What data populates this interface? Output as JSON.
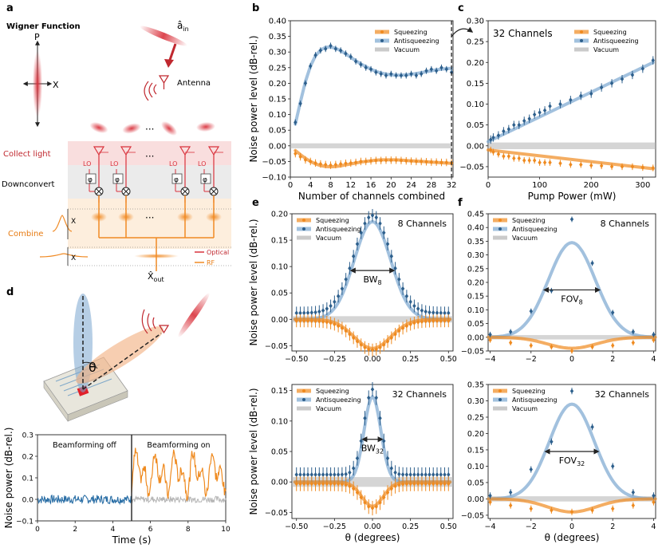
{
  "panels": {
    "a": {
      "letter": "a",
      "wigner_title": "Wigner Function",
      "p_axis": "P",
      "x_axis": "X",
      "a_in": "â",
      "a_in_sub": "in",
      "antenna": "Antenna",
      "dots": "···",
      "collect_light": "Collect light",
      "downconvert": "Downconvert",
      "combine": "Combine",
      "lo": "LO",
      "phi": "φ",
      "x_label": "X",
      "x_out": "X̂",
      "x_out_sub": "out",
      "legend_optical": "Optical",
      "legend_rf": "RF"
    },
    "d": {
      "letter": "d",
      "theta": "θ",
      "beamforming_off": "Beamforming off",
      "beamforming_on": "Beamforming on"
    }
  },
  "colors": {
    "squeezing": "#ef8a1f",
    "antisqueezing": "#7aa6d0",
    "antisq_marker": "#2d5f8c",
    "vacuum": "#b3b3b3",
    "optical": "#d9323c",
    "rf": "#f08a24",
    "trace_off": "#2b6fa6"
  },
  "chart_data": [
    {
      "panel": "b",
      "type": "line",
      "xlabel": "Number of channels combined",
      "ylabel": "Noise power level (dB-rel.)",
      "xlim": [
        0,
        32.3
      ],
      "ylim": [
        -0.1,
        0.4
      ],
      "xticks": [
        0,
        4,
        8,
        12,
        16,
        20,
        24,
        28,
        32
      ],
      "yticks": [
        -0.1,
        -0.05,
        0.0,
        0.05,
        0.1,
        0.15,
        0.2,
        0.25,
        0.3,
        0.35,
        0.4
      ],
      "legend_position": "top-right",
      "annotation": "32 Channels",
      "series": [
        {
          "name": "Squeezing",
          "x": [
            1,
            2,
            3,
            4,
            5,
            6,
            7,
            8,
            9,
            10,
            11,
            12,
            13,
            14,
            15,
            16,
            17,
            18,
            19,
            20,
            21,
            22,
            23,
            24,
            25,
            26,
            27,
            28,
            29,
            30,
            31,
            32
          ],
          "y": [
            -0.025,
            -0.035,
            -0.045,
            -0.05,
            -0.055,
            -0.058,
            -0.06,
            -0.062,
            -0.06,
            -0.058,
            -0.056,
            -0.055,
            -0.053,
            -0.05,
            -0.05,
            -0.048,
            -0.047,
            -0.047,
            -0.046,
            -0.046,
            -0.046,
            -0.047,
            -0.048,
            -0.049,
            -0.05,
            -0.05,
            -0.051,
            -0.052,
            -0.052,
            -0.053,
            -0.053,
            -0.055
          ],
          "err": [
            0.012,
            0.012,
            0.012,
            0.012,
            0.012,
            0.012,
            0.012,
            0.012,
            0.012,
            0.012,
            0.012,
            0.012,
            0.012,
            0.012,
            0.012,
            0.012,
            0.012,
            0.012,
            0.012,
            0.012,
            0.012,
            0.012,
            0.012,
            0.012,
            0.012,
            0.012,
            0.012,
            0.012,
            0.012,
            0.012,
            0.012,
            0.012
          ],
          "fit": [
            -0.015,
            -0.028,
            -0.04,
            -0.05,
            -0.058,
            -0.063,
            -0.066,
            -0.067,
            -0.066,
            -0.064,
            -0.061,
            -0.058,
            -0.055,
            -0.052,
            -0.05,
            -0.048,
            -0.046,
            -0.045,
            -0.045,
            -0.045,
            -0.045,
            -0.046,
            -0.047,
            -0.048,
            -0.049,
            -0.05,
            -0.051,
            -0.052,
            -0.053,
            -0.054,
            -0.055,
            -0.056
          ]
        },
        {
          "name": "Antisqueezing",
          "x": [
            1,
            2,
            3,
            4,
            5,
            6,
            7,
            8,
            9,
            10,
            11,
            12,
            13,
            14,
            15,
            16,
            17,
            18,
            19,
            20,
            21,
            22,
            23,
            24,
            25,
            26,
            27,
            28,
            29,
            30,
            31,
            32
          ],
          "y": [
            0.075,
            0.135,
            0.2,
            0.255,
            0.29,
            0.305,
            0.31,
            0.32,
            0.31,
            0.305,
            0.295,
            0.285,
            0.27,
            0.26,
            0.25,
            0.245,
            0.235,
            0.23,
            0.225,
            0.23,
            0.225,
            0.225,
            0.225,
            0.23,
            0.225,
            0.23,
            0.24,
            0.245,
            0.24,
            0.25,
            0.245,
            0.235
          ],
          "err": [
            0.01,
            0.01,
            0.01,
            0.01,
            0.01,
            0.01,
            0.01,
            0.01,
            0.01,
            0.01,
            0.01,
            0.01,
            0.01,
            0.01,
            0.01,
            0.01,
            0.01,
            0.01,
            0.01,
            0.01,
            0.01,
            0.01,
            0.01,
            0.01,
            0.01,
            0.01,
            0.01,
            0.01,
            0.01,
            0.01,
            0.01,
            0.01
          ],
          "fit": [
            0.07,
            0.14,
            0.205,
            0.255,
            0.288,
            0.306,
            0.315,
            0.316,
            0.312,
            0.304,
            0.294,
            0.283,
            0.272,
            0.262,
            0.253,
            0.245,
            0.238,
            0.233,
            0.229,
            0.227,
            0.226,
            0.226,
            0.227,
            0.229,
            0.231,
            0.234,
            0.237,
            0.24,
            0.243,
            0.245,
            0.247,
            0.248
          ]
        },
        {
          "name": "Vacuum",
          "band": [
            -0.008,
            0.008
          ]
        }
      ]
    },
    {
      "panel": "c",
      "type": "line",
      "xlabel": "Pump Power (mW)",
      "ylabel": "",
      "xlim": [
        0,
        325
      ],
      "ylim": [
        -0.075,
        0.3
      ],
      "xticks": [
        0,
        100,
        200,
        300
      ],
      "yticks": [
        -0.05,
        0.0,
        0.05,
        0.1,
        0.15,
        0.2,
        0.25,
        0.3
      ],
      "legend_position": "top-right",
      "series": [
        {
          "name": "Squeezing",
          "x": [
            5,
            10,
            20,
            30,
            40,
            50,
            60,
            70,
            80,
            90,
            100,
            110,
            120,
            140,
            160,
            180,
            200,
            220,
            240,
            260,
            280,
            300,
            320
          ],
          "y": [
            -0.01,
            -0.015,
            -0.02,
            -0.025,
            -0.025,
            -0.03,
            -0.03,
            -0.035,
            -0.035,
            -0.035,
            -0.04,
            -0.04,
            -0.04,
            -0.042,
            -0.045,
            -0.045,
            -0.047,
            -0.048,
            -0.05,
            -0.05,
            -0.05,
            -0.052,
            -0.053
          ],
          "err": [
            0.008,
            0.008,
            0.008,
            0.008,
            0.008,
            0.008,
            0.008,
            0.008,
            0.008,
            0.008,
            0.008,
            0.008,
            0.008,
            0.008,
            0.008,
            0.008,
            0.008,
            0.008,
            0.008,
            0.008,
            0.008,
            0.008,
            0.008
          ],
          "fit_x": [
            0,
            320
          ],
          "fit": [
            -0.01,
            -0.055
          ]
        },
        {
          "name": "Antisqueezing",
          "x": [
            5,
            10,
            20,
            30,
            40,
            50,
            60,
            70,
            80,
            90,
            100,
            110,
            120,
            140,
            160,
            180,
            200,
            220,
            240,
            260,
            280,
            300,
            320
          ],
          "y": [
            0.015,
            0.02,
            0.025,
            0.035,
            0.04,
            0.05,
            0.05,
            0.06,
            0.065,
            0.075,
            0.08,
            0.085,
            0.095,
            0.1,
            0.11,
            0.12,
            0.125,
            0.14,
            0.15,
            0.16,
            0.17,
            0.185,
            0.205
          ],
          "err": [
            0.01,
            0.01,
            0.01,
            0.01,
            0.01,
            0.01,
            0.01,
            0.01,
            0.01,
            0.01,
            0.01,
            0.01,
            0.01,
            0.01,
            0.01,
            0.01,
            0.01,
            0.01,
            0.01,
            0.01,
            0.01,
            0.01,
            0.01
          ],
          "fit_x": [
            0,
            320
          ],
          "fit": [
            0.01,
            0.2
          ]
        },
        {
          "name": "Vacuum",
          "band": [
            -0.008,
            0.008
          ]
        }
      ]
    },
    {
      "panel": "e-top",
      "type": "line",
      "xlabel": "",
      "ylabel": "Noise power level (dB-rel.)",
      "xlim": [
        -0.53,
        0.53
      ],
      "ylim": [
        -0.06,
        0.2
      ],
      "xticks": [
        -0.5,
        -0.25,
        0.0,
        0.25,
        0.5
      ],
      "xtick_labels": [
        "−0.50",
        "−0.25",
        "0.00",
        "0.25",
        "0.50"
      ],
      "yticks": [
        -0.05,
        0.0,
        0.05,
        0.1,
        0.15,
        0.2
      ],
      "annotation": "8 Channels",
      "width_label": "BW",
      "width_sub": "8",
      "legend_position": "top-left",
      "series": [
        {
          "name": "Squeezing",
          "peak": -0.055,
          "sigma": 0.12,
          "center": 0,
          "err": 0.012
        },
        {
          "name": "Antisqueezing",
          "peak": 0.185,
          "sigma": 0.12,
          "center": 0,
          "err": 0.012
        },
        {
          "name": "Vacuum",
          "band": [
            -0.006,
            0.006
          ]
        }
      ]
    },
    {
      "panel": "e-bottom",
      "type": "line",
      "xlabel": "θ (degrees)",
      "ylabel": "Noise power level (dB-rel.)",
      "xlim": [
        -0.53,
        0.53
      ],
      "ylim": [
        -0.06,
        0.16
      ],
      "xticks": [
        -0.5,
        -0.25,
        0.0,
        0.25,
        0.5
      ],
      "xtick_labels": [
        "−0.50",
        "−0.25",
        "0.00",
        "0.25",
        "0.50"
      ],
      "yticks": [
        -0.05,
        0.0,
        0.05,
        0.1,
        0.15
      ],
      "annotation": "32 Channels",
      "width_label": "BW",
      "width_sub": "32",
      "legend_position": "top-left",
      "series": [
        {
          "name": "Squeezing",
          "peak": -0.04,
          "sigma": 0.07,
          "center": 0,
          "err": 0.012
        },
        {
          "name": "Antisqueezing",
          "peak": 0.14,
          "sigma": 0.055,
          "center": 0,
          "err": 0.012
        },
        {
          "name": "Vacuum",
          "band": [
            -0.008,
            0.008
          ]
        }
      ]
    },
    {
      "panel": "f-top",
      "type": "line",
      "xlabel": "",
      "ylabel": "",
      "xlim": [
        -4.1,
        4.1
      ],
      "ylim": [
        -0.05,
        0.45
      ],
      "xticks": [
        -4,
        -2,
        0,
        2,
        4
      ],
      "xtick_labels": [
        "−4",
        "−2",
        "0",
        "2",
        "4"
      ],
      "yticks": [
        -0.05,
        0.0,
        0.05,
        0.1,
        0.15,
        0.2,
        0.25,
        0.3,
        0.35,
        0.4,
        0.45
      ],
      "annotation": "8 Channels",
      "width_label": "FOV",
      "width_sub": "8",
      "legend_position": "top-left",
      "series": [
        {
          "name": "Squeezing",
          "x": [
            -4,
            -3,
            -2,
            -1,
            0,
            1,
            2,
            3,
            4
          ],
          "y": [
            -0.01,
            -0.02,
            -0.03,
            -0.035,
            -0.05,
            -0.035,
            -0.03,
            -0.02,
            -0.01
          ],
          "err": [
            0.01,
            0.01,
            0.01,
            0.01,
            0.01,
            0.01,
            0.01,
            0.01,
            0.01
          ],
          "peak": -0.04,
          "sigma": 1.2
        },
        {
          "name": "Antisqueezing",
          "x": [
            -4,
            -3,
            -2,
            -1,
            0,
            1,
            2,
            3,
            4
          ],
          "y": [
            0.01,
            0.02,
            0.095,
            0.17,
            0.43,
            0.27,
            0.09,
            0.02,
            0.01
          ],
          "err": [
            0.01,
            0.01,
            0.01,
            0.01,
            0.01,
            0.01,
            0.01,
            0.01,
            0.01
          ],
          "peak": 0.345,
          "sigma": 1.15
        },
        {
          "name": "Vacuum",
          "band": [
            -0.008,
            0.008
          ]
        }
      ]
    },
    {
      "panel": "f-bottom",
      "type": "line",
      "xlabel": "θ (degrees)",
      "ylabel": "",
      "xlim": [
        -4.1,
        4.1
      ],
      "ylim": [
        -0.06,
        0.35
      ],
      "xticks": [
        -4,
        -2,
        0,
        2,
        4
      ],
      "xtick_labels": [
        "−4",
        "−2",
        "0",
        "2",
        "4"
      ],
      "yticks": [
        -0.05,
        0.0,
        0.05,
        0.1,
        0.15,
        0.2,
        0.25,
        0.3,
        0.35
      ],
      "annotation": "32 Channels",
      "width_label": "FOV",
      "width_sub": "32",
      "legend_position": "top-left",
      "series": [
        {
          "name": "Squeezing",
          "x": [
            -4,
            -3,
            -2,
            -1,
            0,
            1,
            2,
            3,
            4
          ],
          "y": [
            -0.01,
            -0.02,
            -0.03,
            -0.035,
            -0.04,
            -0.035,
            -0.03,
            -0.02,
            -0.01
          ],
          "err": [
            0.01,
            0.01,
            0.01,
            0.01,
            0.01,
            0.01,
            0.01,
            0.01,
            0.01
          ],
          "peak": -0.04,
          "sigma": 1.2
        },
        {
          "name": "Antisqueezing",
          "x": [
            -4,
            -3,
            -2,
            -1,
            0,
            1,
            2,
            3,
            4
          ],
          "y": [
            0.01,
            0.02,
            0.09,
            0.175,
            0.33,
            0.22,
            0.1,
            0.02,
            0.01
          ],
          "err": [
            0.01,
            0.01,
            0.01,
            0.01,
            0.01,
            0.01,
            0.01,
            0.01,
            0.01
          ],
          "peak": 0.29,
          "sigma": 1.1
        },
        {
          "name": "Vacuum",
          "band": [
            -0.008,
            0.008
          ]
        }
      ]
    },
    {
      "panel": "d-trace",
      "type": "line",
      "xlabel": "Time (s)",
      "ylabel": "Noise power (dB-rel.)",
      "xlim": [
        0,
        10
      ],
      "ylim": [
        -0.1,
        0.3
      ],
      "xticks": [
        0,
        2,
        4,
        6,
        8,
        10
      ],
      "yticks": [
        -0.1,
        0.0,
        0.1,
        0.2,
        0.3
      ],
      "ytick_labels": [
        "−0.1",
        "0.0",
        "0.1",
        "0.2",
        "0.3"
      ],
      "switch_time": 5
    }
  ]
}
